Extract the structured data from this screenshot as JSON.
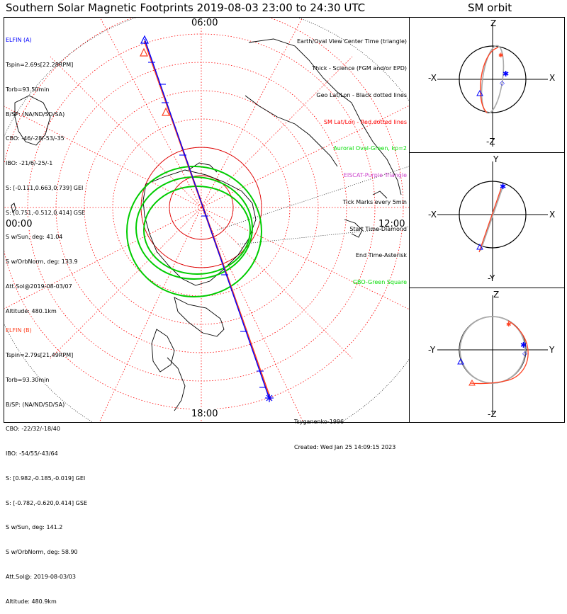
{
  "title": "Southern Solar Magnetic Footprints 2019-08-03 23:00 to 24:30 UTC",
  "sm_orbit_title": "SM orbit",
  "time_labels": {
    "top": "06:00",
    "left": "00:00",
    "right": "12:00",
    "bottom": "18:00"
  },
  "elfin_a": {
    "name": "ELFIN (A)",
    "lines": [
      "Tspin=2.69s[22.28RPM]",
      "Torb=93.50min",
      "B/SP: (NA/ND/SD/SA)",
      "CBO: -46/-28/-53/-35",
      "IBO: -21/6/-25/-1",
      "S: [-0.111,0.663,0.739] GEI",
      "S: [0.751,-0.512,0.414] GSE",
      "S w/Sun, deg: 41.04",
      "S w/OrbNorm, deg: 133.9",
      "Att.Sol@2019-08-03/07",
      "Altitude: 480.1km"
    ]
  },
  "elfin_b": {
    "name": "ELFIN (B)",
    "lines": [
      "Tspin=2.79s[21.49RPM]",
      "Torb=93.30min",
      "B/SP: (NA/ND/SD/SA)",
      "CBO: -22/32/-18/40",
      "IBO: -54/55/-43/64",
      "S: [0.982,-0.185,-0.019] GEI",
      "S: [-0.782,-0.620,0.414] GSE",
      "S w/Sun, deg: 141.2",
      "S w/OrbNorm, deg: 58.90",
      "Att.Sol@: 2019-08-03/03",
      "Altitude: 480.9km"
    ]
  },
  "legend": {
    "lines": [
      "Earth/Oval View Center Time (triangle)",
      "Thick - Science (FGM and/or EPD)",
      "Geo Lat/Lon - Black dotted lines",
      "SM Lat/Lon - Red dotted lines",
      "Auroral Oval-Green, kp=2",
      "EISCAT-Purple Triangle",
      "Tick Marks every 5min",
      "Start Time-Diamond",
      "End Time-Asterisk",
      "GBO-Green Square"
    ],
    "colors": [
      "#000000",
      "#000000",
      "#000000",
      "#ff0000",
      "#00dd00",
      "#cc44cc",
      "#000000",
      "#000000",
      "#000000",
      "#00dd00"
    ]
  },
  "credits": {
    "model": "Tsyganenko-1996",
    "created": "Created: Wed Jan 25 14:09:15 2023"
  },
  "orbit_panels": [
    {
      "top": "Z",
      "bottom": "-Z",
      "left": "-X",
      "right": "X"
    },
    {
      "top": "Y",
      "bottom": "-Y",
      "left": "-X",
      "right": "X"
    },
    {
      "top": "Z",
      "bottom": "-Z",
      "left": "-Y",
      "right": "Y"
    }
  ],
  "colors": {
    "elfin_a": "#0000ff",
    "elfin_b": "#ff4020",
    "auroral_oval": "#00cc00",
    "sm_grid": "#ff0000",
    "geo_grid": "#000000"
  }
}
